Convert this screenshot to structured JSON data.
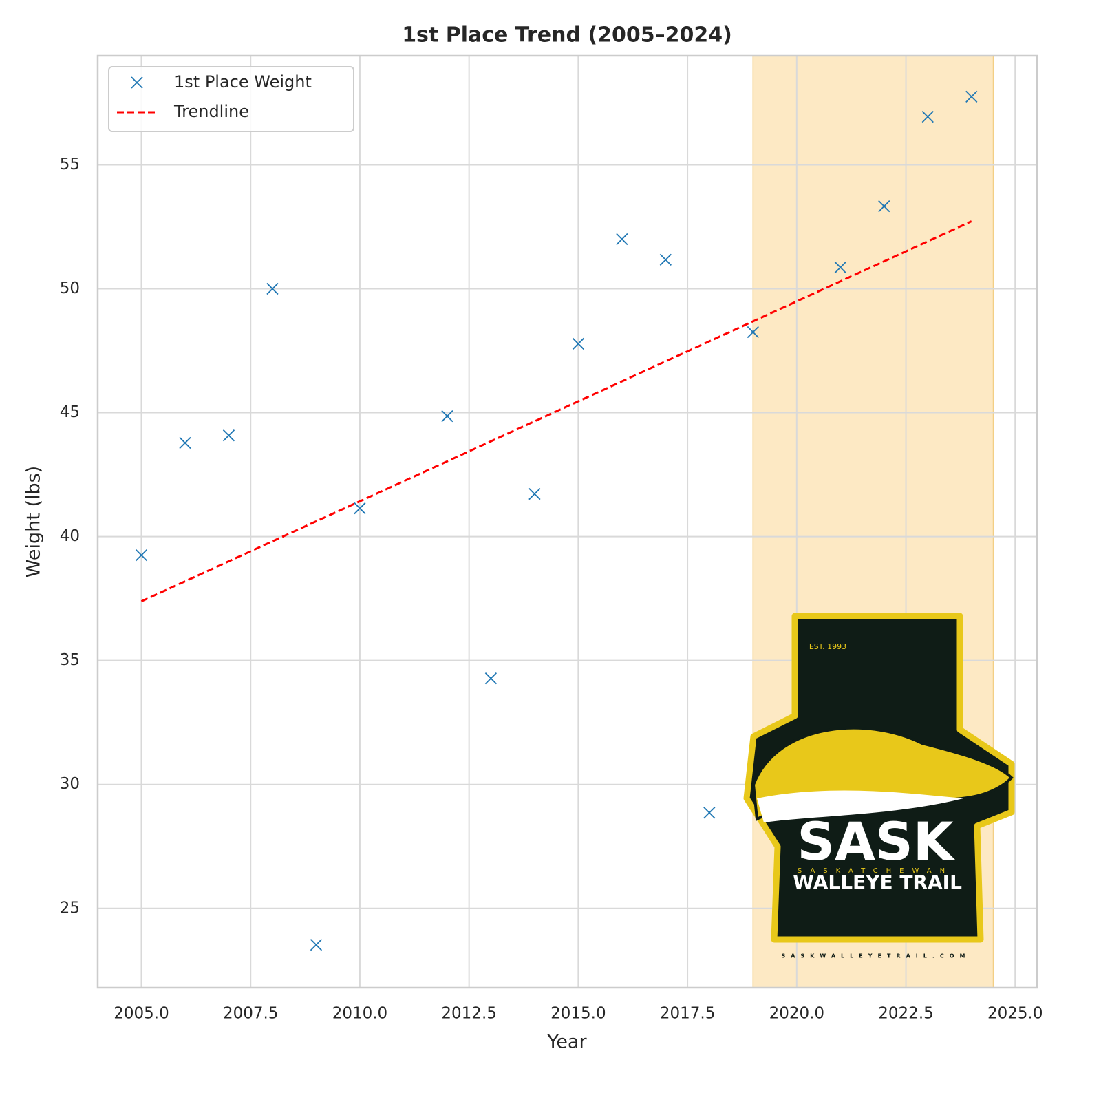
{
  "chart_data": {
    "type": "scatter",
    "title": "1st Place Trend (2005–2024)",
    "x_label": "Year",
    "y_label": "Weight (lbs)",
    "xlim": [
      2004.0,
      2025.5
    ],
    "ylim": [
      21.8,
      59.4
    ],
    "xticks": [
      {
        "value": 2005,
        "label": "2005.0"
      },
      {
        "value": 2007.5,
        "label": "2007.5"
      },
      {
        "value": 2010,
        "label": "2010.0"
      },
      {
        "value": 2012.5,
        "label": "2012.5"
      },
      {
        "value": 2015,
        "label": "2015.0"
      },
      {
        "value": 2017.5,
        "label": "2017.5"
      },
      {
        "value": 2020,
        "label": "2020.0"
      },
      {
        "value": 2022.5,
        "label": "2022.5"
      },
      {
        "value": 2025,
        "label": "2025.0"
      }
    ],
    "yticks": [
      25,
      30,
      35,
      40,
      45,
      50,
      55
    ],
    "grid": true,
    "legend": "upper left",
    "highlight_span": {
      "range": [
        2019,
        2024.5
      ],
      "color": "#fde9c4"
    },
    "series": [
      {
        "name": "1st Place Weight",
        "type": "scatter",
        "color": "#1f77b4",
        "x": [
          2005,
          2006,
          2007,
          2008,
          2009,
          2010,
          2012,
          2013,
          2014,
          2015,
          2016,
          2017,
          2018,
          2019,
          2021,
          2022,
          2023,
          2024
        ],
        "values": [
          39.25,
          43.78,
          44.08,
          50.0,
          23.53,
          41.14,
          44.86,
          34.28,
          41.72,
          47.78,
          52.0,
          51.17,
          28.86,
          48.25,
          50.86,
          53.33,
          56.94,
          57.75
        ]
      },
      {
        "name": "Trendline",
        "type": "line",
        "color": "#ff0000",
        "dashed": true,
        "x": [
          2005,
          2024
        ],
        "values": [
          37.39,
          52.72
        ]
      }
    ]
  },
  "logo": {
    "est": "EST. 1993",
    "big": "SASK",
    "sub": "SASKATCHEWAN",
    "name": "WALLEYE TRAIL",
    "url": "SASKWALLEYETRAIL.COM"
  }
}
